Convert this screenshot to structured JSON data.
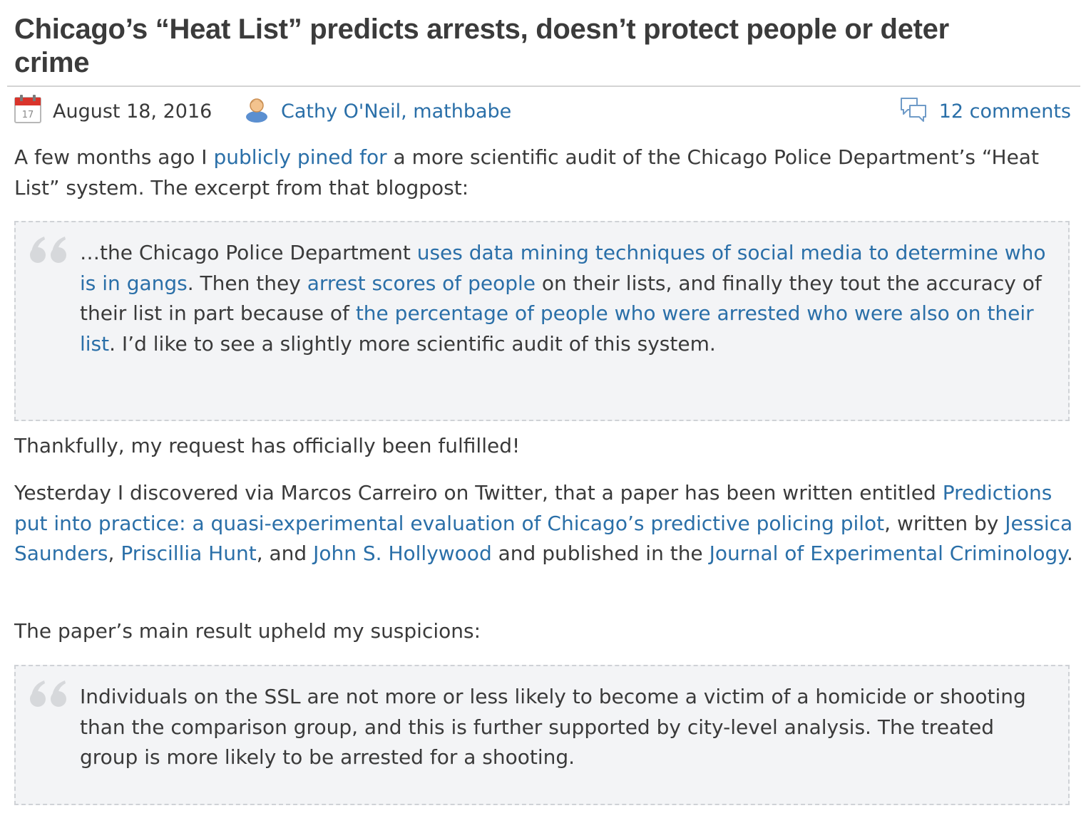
{
  "post": {
    "title": "Chicago’s “Heat List” predicts arrests, doesn’t protect people or deter crime",
    "date": "August 18, 2016",
    "author": "Cathy O'Neil, mathbabe",
    "comments": "12 comments"
  },
  "icons": {
    "calendar": "calendar-icon",
    "author": "user-icon",
    "comments": "speech-bubbles-icon",
    "quote": "quote-mark-icon"
  },
  "colors": {
    "link": "#2a6fa8",
    "text": "#3a3a3a",
    "quote_bg": "#f3f4f6",
    "quote_border": "#cfd2d6"
  },
  "p1": {
    "t1": "A few months ago I ",
    "link1": "publicly pined for",
    "t2": " a more scientific audit of the Chicago Police Department’s “Heat List” system. The excerpt from that blogpost:"
  },
  "quote1": {
    "t1": "…the Chicago Police Department ",
    "link1": "uses data mining techniques of social media to determine who is in gangs",
    "t2": ". Then they ",
    "link2": "arrest scores of people",
    "t3": " on their lists, and finally they tout the accuracy of their list in part because of ",
    "link3": "the percentage of people who were arrested who were also on their list",
    "t4": ". I’d like to see a slightly more scientific audit of this system."
  },
  "p2": {
    "text": "Thankfully, my request has officially been fulfilled!"
  },
  "p3": {
    "t1": "Yesterday I discovered via Marcos Carreiro on Twitter, that a paper has been written entitled ",
    "link1": "Predictions put into practice: a quasi-experimental evaluation of Chicago’s predictive policing pilot",
    "t2": ", written by ",
    "link2": "Jessica Saunders",
    "t3": ", ",
    "link3": "Priscillia Hunt",
    "t4": ", and ",
    "link4": "John S. Hollywood",
    "t5": " and published in the ",
    "link5": "Journal of Experimental Criminology",
    "t6": "."
  },
  "p4": {
    "text": "The paper’s main result upheld my suspicions:"
  },
  "quote2": {
    "text": "Individuals on the SSL are not more or less likely to become a victim of a homicide or shooting than the comparison group, and this is further supported by city-level analysis. The treated group is more likely to be arrested for a shooting."
  }
}
